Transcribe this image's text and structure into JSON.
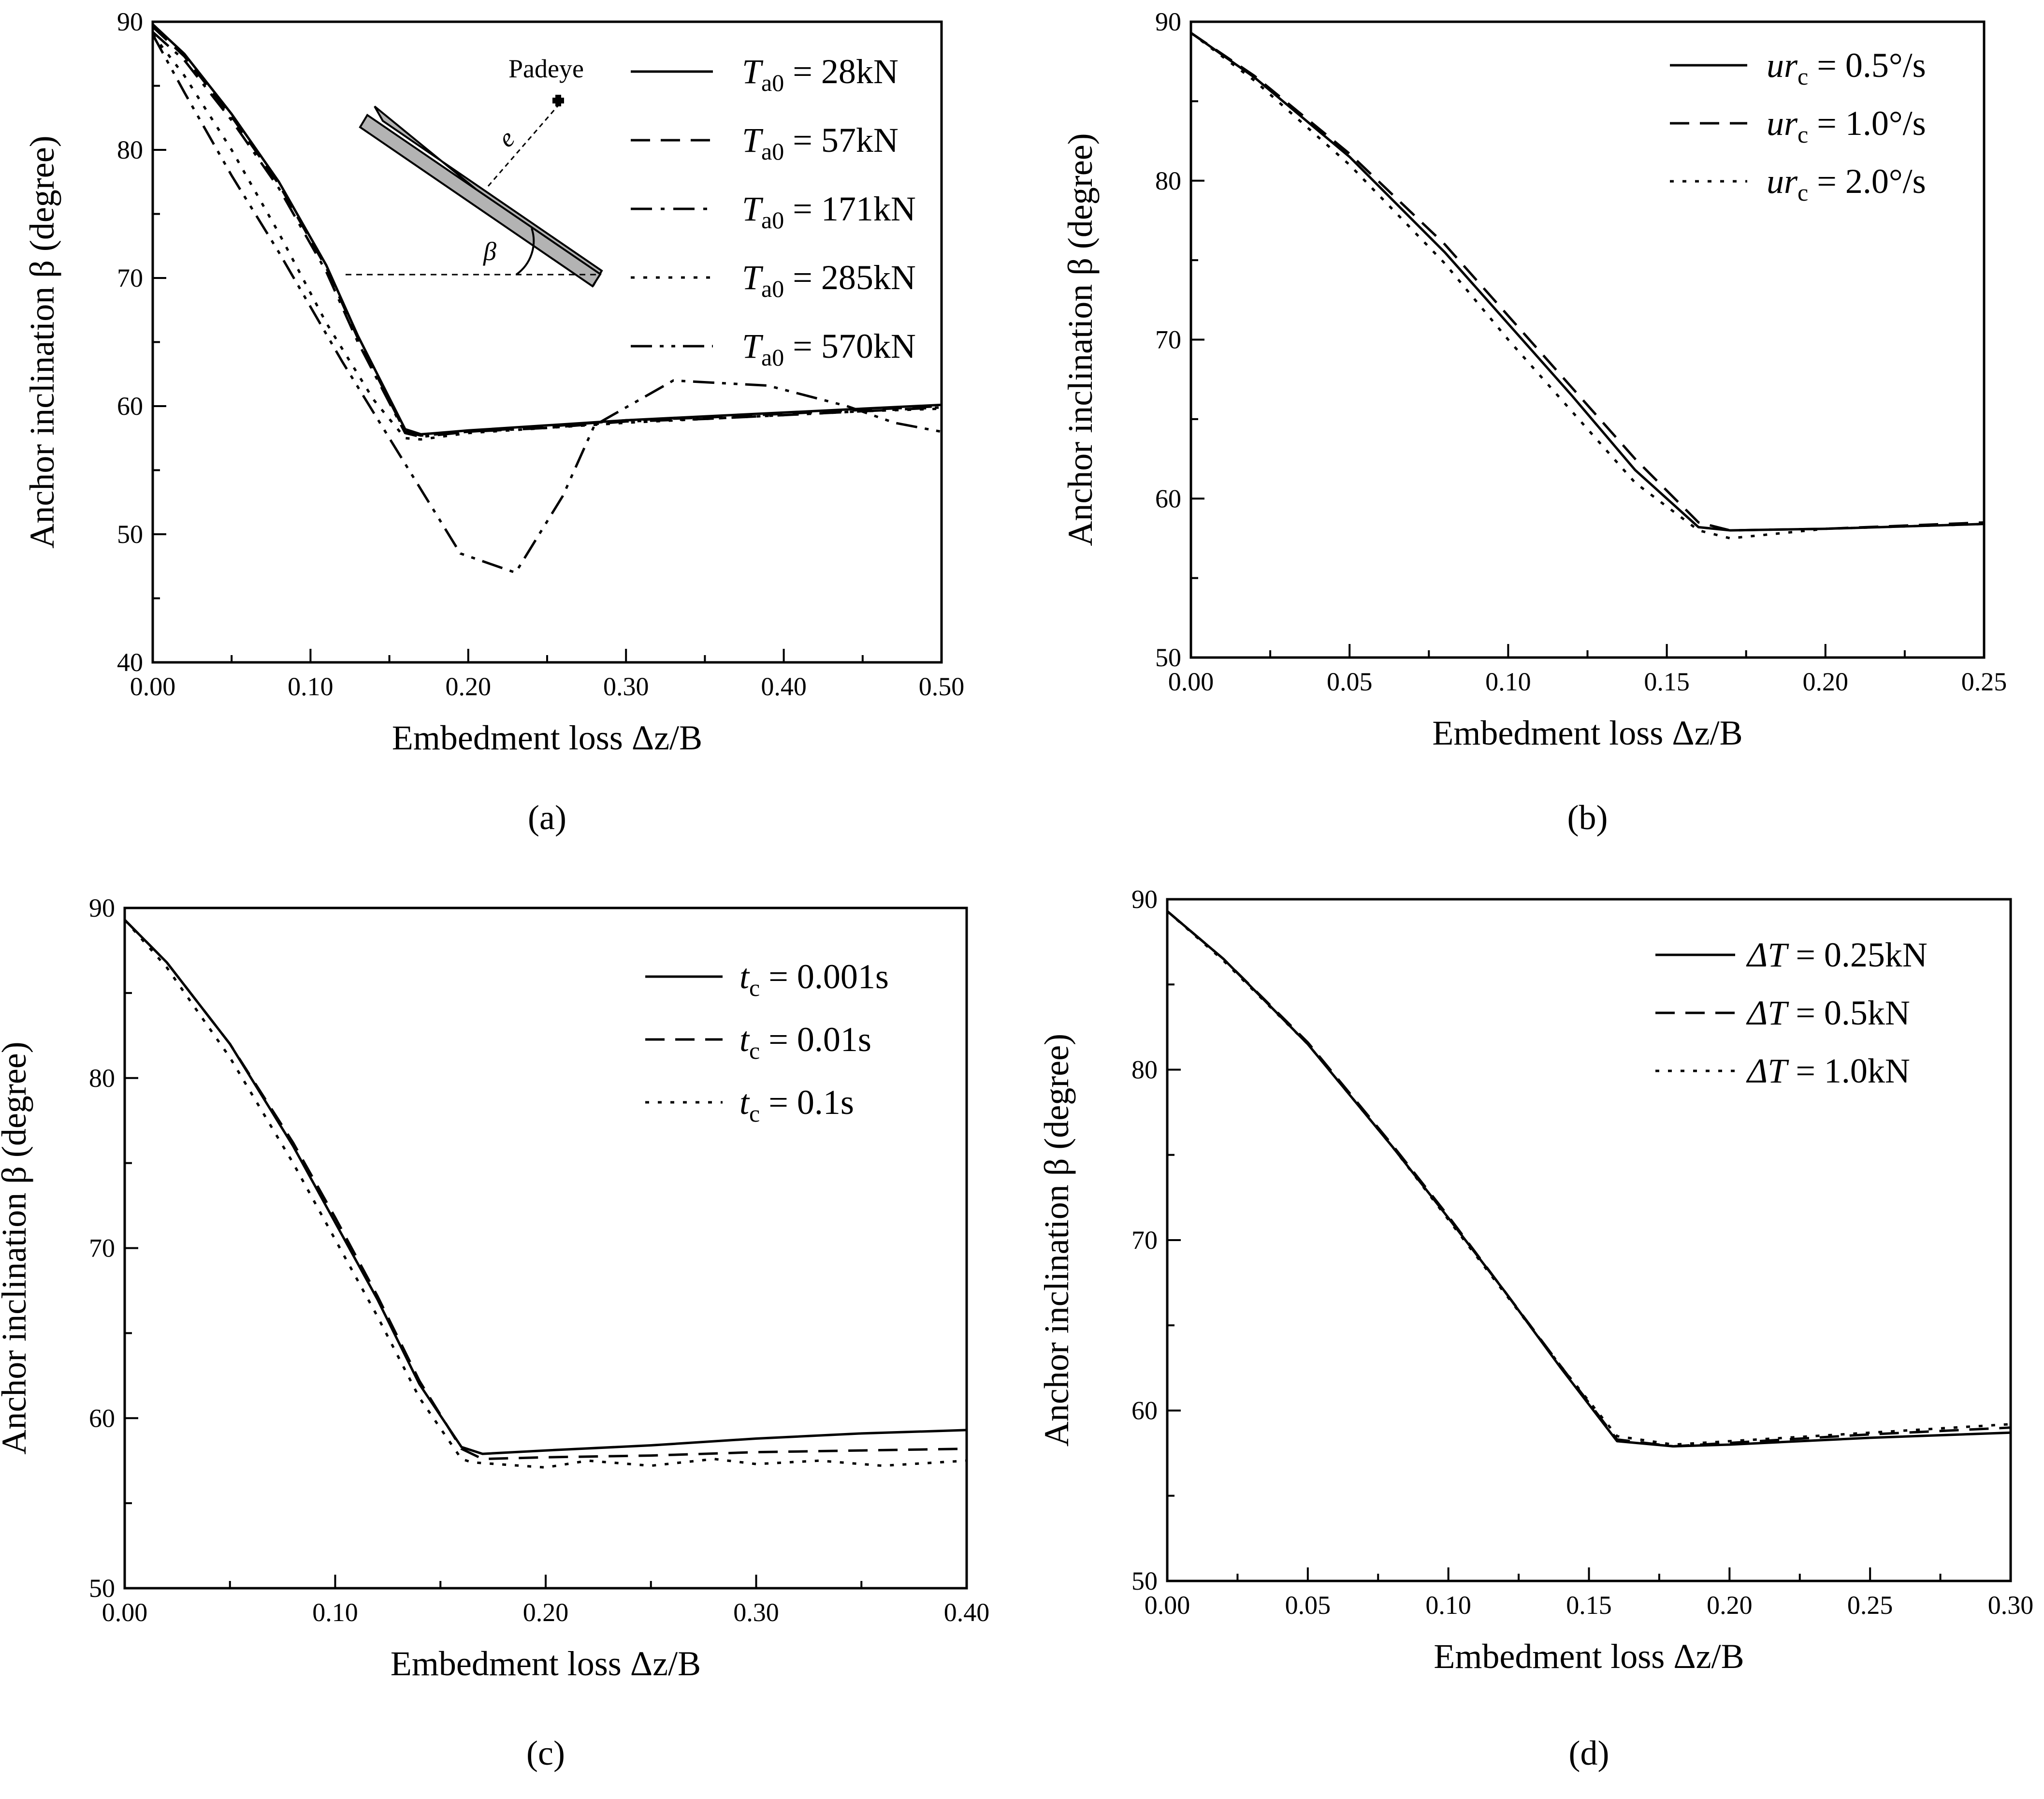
{
  "chart_data": [
    {
      "id": "a",
      "type": "line",
      "panel_label": "(a)",
      "xlabel": "Embedment loss  Δz/B",
      "ylabel": "Anchor inclination β (degree)",
      "xlim": [
        0,
        0.5
      ],
      "ylim": [
        40,
        90
      ],
      "xticks": [
        "0.00",
        "0.10",
        "0.20",
        "0.30",
        "0.40",
        "0.50"
      ],
      "yticks": [
        "40",
        "50",
        "60",
        "70",
        "80",
        "90"
      ],
      "legend_position": "top-right",
      "annotation": {
        "padeye_label": "Padeye",
        "e_label": "e",
        "beta_label": "β"
      },
      "series": [
        {
          "name": "Ta0 = 28kN",
          "symbol": "T",
          "sub": "a0",
          "value": " = 28kN",
          "style": "solid",
          "x": [
            0,
            0.02,
            0.05,
            0.08,
            0.11,
            0.13,
            0.16,
            0.17,
            0.2,
            0.25,
            0.3,
            0.35,
            0.4,
            0.45,
            0.5
          ],
          "y": [
            89.8,
            87.5,
            82.8,
            77.5,
            71.0,
            65.5,
            58.2,
            57.8,
            58.1,
            58.5,
            58.9,
            59.2,
            59.5,
            59.8,
            60.1
          ]
        },
        {
          "name": "Ta0 = 57kN",
          "symbol": "T",
          "sub": "a0",
          "value": " = 57kN",
          "style": "dashed",
          "x": [
            0,
            0.02,
            0.05,
            0.08,
            0.11,
            0.13,
            0.16,
            0.17,
            0.2,
            0.25,
            0.3,
            0.35,
            0.4,
            0.45,
            0.5
          ],
          "y": [
            89.6,
            87.3,
            82.6,
            77.3,
            70.8,
            65.3,
            58.0,
            57.7,
            58.0,
            58.4,
            58.9,
            59.1,
            59.4,
            59.7,
            60.0
          ]
        },
        {
          "name": "Ta0 = 171kN",
          "symbol": "T",
          "sub": "a0",
          "value": " = 171kN",
          "style": "dashdot",
          "x": [
            0,
            0.02,
            0.05,
            0.08,
            0.11,
            0.13,
            0.16,
            0.17,
            0.2,
            0.25,
            0.3,
            0.35,
            0.4,
            0.45,
            0.5
          ],
          "y": [
            89.2,
            87.0,
            82.3,
            77.0,
            70.5,
            65.0,
            57.9,
            57.6,
            58.0,
            58.3,
            58.8,
            59.0,
            59.3,
            59.6,
            59.9
          ]
        },
        {
          "name": "Ta0 = 285kN",
          "symbol": "T",
          "sub": "a0",
          "value": " = 285kN",
          "style": "dotted",
          "x": [
            0,
            0.02,
            0.05,
            0.08,
            0.11,
            0.14,
            0.16,
            0.17,
            0.2,
            0.25,
            0.3,
            0.35,
            0.4,
            0.45,
            0.5
          ],
          "y": [
            89.0,
            85.8,
            80.0,
            73.5,
            66.5,
            60.5,
            57.5,
            57.4,
            57.9,
            58.3,
            58.7,
            59.0,
            59.3,
            59.6,
            59.8
          ]
        },
        {
          "name": "Ta0 = 570kN",
          "symbol": "T",
          "sub": "a0",
          "value": " = 570kN",
          "style": "dashdotdot",
          "x": [
            0,
            0.02,
            0.05,
            0.08,
            0.12,
            0.16,
            0.195,
            0.23,
            0.26,
            0.28,
            0.33,
            0.39,
            0.44,
            0.47,
            0.5
          ],
          "y": [
            89.0,
            84.5,
            78.0,
            72.0,
            63.5,
            55.5,
            48.5,
            47.0,
            53.0,
            58.5,
            62.0,
            61.6,
            60.0,
            58.7,
            58.0
          ]
        }
      ]
    },
    {
      "id": "b",
      "type": "line",
      "panel_label": "(b)",
      "xlabel": "Embedment loss  Δz/B",
      "ylabel": "Anchor inclination β (degree)",
      "xlim": [
        0,
        0.25
      ],
      "ylim": [
        50,
        90
      ],
      "xticks": [
        "0.00",
        "0.05",
        "0.10",
        "0.15",
        "0.20",
        "0.25"
      ],
      "yticks": [
        "50",
        "60",
        "70",
        "80",
        "90"
      ],
      "legend_position": "top-right",
      "series": [
        {
          "name": "urc = 0.5°/s",
          "symbol": "ur",
          "sub": "c",
          "value": " = 0.5°/s",
          "style": "solid",
          "x": [
            0,
            0.02,
            0.05,
            0.08,
            0.1,
            0.12,
            0.14,
            0.16,
            0.17,
            0.2,
            0.25
          ],
          "y": [
            89.3,
            86.5,
            81.5,
            75.5,
            71.0,
            66.5,
            61.8,
            58.2,
            58.0,
            58.1,
            58.4
          ]
        },
        {
          "name": "urc = 1.0°/s",
          "symbol": "ur",
          "sub": "c",
          "value": " = 1.0°/s",
          "style": "dashed",
          "x": [
            0,
            0.02,
            0.05,
            0.08,
            0.1,
            0.12,
            0.14,
            0.16,
            0.17,
            0.2,
            0.25
          ],
          "y": [
            89.3,
            86.6,
            81.7,
            76.0,
            71.5,
            67.0,
            62.5,
            58.5,
            58.0,
            58.1,
            58.5
          ]
        },
        {
          "name": "urc = 2.0°/s",
          "symbol": "ur",
          "sub": "c",
          "value": " = 2.0°/s",
          "style": "dotted",
          "x": [
            0,
            0.02,
            0.05,
            0.08,
            0.1,
            0.12,
            0.14,
            0.16,
            0.17,
            0.2,
            0.25
          ],
          "y": [
            89.3,
            86.3,
            81.0,
            74.8,
            70.0,
            65.5,
            61.0,
            58.0,
            57.5,
            58.1,
            58.4
          ]
        }
      ]
    },
    {
      "id": "c",
      "type": "line",
      "panel_label": "(c)",
      "xlabel": "Embedment loss  Δz/B",
      "ylabel": "Anchor inclination β (degree)",
      "xlim": [
        0,
        0.4
      ],
      "ylim": [
        50,
        90
      ],
      "xticks": [
        "0.00",
        "0.10",
        "0.20",
        "0.30",
        "0.40"
      ],
      "yticks": [
        "50",
        "60",
        "70",
        "80",
        "90"
      ],
      "legend_position": "top-right",
      "series": [
        {
          "name": "tc = 0.001s",
          "symbol": "t",
          "sub": "c",
          "value": " = 0.001s",
          "style": "solid",
          "x": [
            0,
            0.02,
            0.05,
            0.08,
            0.1,
            0.12,
            0.14,
            0.16,
            0.17,
            0.2,
            0.25,
            0.3,
            0.35,
            0.4
          ],
          "y": [
            89.3,
            86.8,
            82.0,
            76.0,
            71.5,
            67.0,
            62.0,
            58.3,
            57.9,
            58.1,
            58.4,
            58.8,
            59.1,
            59.3
          ]
        },
        {
          "name": "tc = 0.01s",
          "symbol": "t",
          "sub": "c",
          "value": " = 0.01s",
          "style": "dashed",
          "x": [
            0,
            0.02,
            0.05,
            0.08,
            0.1,
            0.12,
            0.14,
            0.16,
            0.17,
            0.2,
            0.25,
            0.3,
            0.35,
            0.4
          ],
          "y": [
            89.3,
            86.8,
            82.0,
            76.2,
            71.8,
            67.2,
            62.2,
            58.2,
            57.6,
            57.7,
            57.8,
            58.0,
            58.1,
            58.2
          ]
        },
        {
          "name": "tc = 0.1s",
          "symbol": "t",
          "sub": "c",
          "value": " = 0.1s",
          "style": "dotted",
          "x": [
            0,
            0.02,
            0.05,
            0.08,
            0.1,
            0.12,
            0.14,
            0.16,
            0.165,
            0.2,
            0.22,
            0.25,
            0.28,
            0.3,
            0.33,
            0.36,
            0.4
          ],
          "y": [
            89.3,
            86.5,
            81.2,
            75.0,
            70.5,
            66.0,
            61.2,
            57.6,
            57.4,
            57.1,
            57.5,
            57.2,
            57.6,
            57.3,
            57.5,
            57.2,
            57.5
          ]
        }
      ]
    },
    {
      "id": "d",
      "type": "line",
      "panel_label": "(d)",
      "xlabel": "Embedment loss Δz/B",
      "ylabel": "Anchor inclination β (degree)",
      "xlim": [
        0,
        0.3
      ],
      "ylim": [
        50,
        90
      ],
      "xticks": [
        "0.00",
        "0.05",
        "0.10",
        "0.15",
        "0.20",
        "0.25",
        "0.30"
      ],
      "yticks": [
        "50",
        "60",
        "70",
        "80",
        "90"
      ],
      "legend_position": "top-right",
      "series": [
        {
          "name": "ΔT = 0.25kN",
          "symbol": "ΔT",
          "sub": "",
          "value": " = 0.25kN",
          "style": "solid",
          "x": [
            0,
            0.02,
            0.05,
            0.08,
            0.1,
            0.12,
            0.14,
            0.16,
            0.18,
            0.2,
            0.25,
            0.3
          ],
          "y": [
            89.3,
            86.5,
            81.5,
            75.5,
            71.3,
            67.0,
            62.5,
            58.2,
            57.9,
            58.0,
            58.4,
            58.7
          ]
        },
        {
          "name": "ΔT = 0.5kN",
          "symbol": "ΔT",
          "sub": "",
          "value": " = 0.5kN",
          "style": "dashed",
          "x": [
            0,
            0.02,
            0.05,
            0.08,
            0.1,
            0.12,
            0.14,
            0.16,
            0.18,
            0.2,
            0.25,
            0.3
          ],
          "y": [
            89.3,
            86.5,
            81.6,
            75.6,
            71.4,
            67.0,
            62.6,
            58.3,
            57.9,
            58.1,
            58.6,
            59.0
          ]
        },
        {
          "name": "ΔT = 1.0kN",
          "symbol": "ΔT",
          "sub": "",
          "value": " = 1.0kN",
          "style": "dotted",
          "x": [
            0,
            0.02,
            0.05,
            0.08,
            0.1,
            0.12,
            0.14,
            0.16,
            0.18,
            0.2,
            0.25,
            0.3
          ],
          "y": [
            89.3,
            86.4,
            81.5,
            75.5,
            71.2,
            66.9,
            62.6,
            58.5,
            58.0,
            58.2,
            58.7,
            59.2
          ]
        }
      ]
    }
  ]
}
